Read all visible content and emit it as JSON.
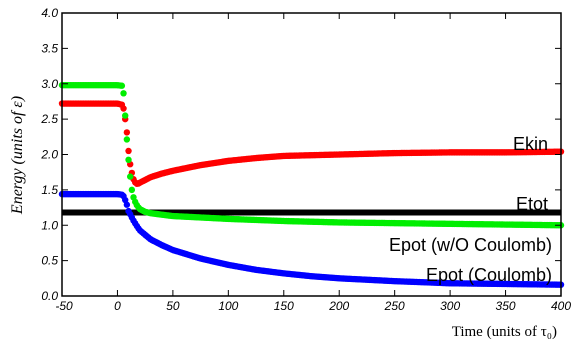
{
  "chart_data": {
    "type": "scatter",
    "xlabel": "Time (units of τ₀)",
    "ylabel": "Energy (units of ε)",
    "xlim": [
      -50,
      400
    ],
    "ylim": [
      0.0,
      4.0
    ],
    "xticks": [
      "-50",
      "0",
      "50",
      "100",
      "150",
      "200",
      "250",
      "300",
      "350",
      "400"
    ],
    "yticks": [
      "0.0",
      "0.5",
      "1.0",
      "1.5",
      "2.0",
      "2.5",
      "3.0",
      "3.5",
      "4.0"
    ],
    "grid": false,
    "series": [
      {
        "name": "Ekin",
        "color": "#ff0000",
        "x": [
          -50,
          0,
          5,
          8,
          10,
          12,
          15,
          18,
          20,
          25,
          30,
          40,
          50,
          75,
          100,
          125,
          150,
          175,
          200,
          250,
          300,
          350,
          400
        ],
        "y": [
          2.72,
          2.72,
          2.7,
          2.4,
          2.05,
          1.8,
          1.62,
          1.58,
          1.6,
          1.64,
          1.68,
          1.73,
          1.77,
          1.85,
          1.91,
          1.95,
          1.98,
          1.99,
          2.0,
          2.02,
          2.03,
          2.03,
          2.04
        ]
      },
      {
        "name": "Etot",
        "color": "#000000",
        "x": [
          -50,
          400
        ],
        "y": [
          1.18,
          1.18
        ]
      },
      {
        "name": "Epot (w/O Coulomb)",
        "color": "#00ee00",
        "x": [
          -50,
          0,
          5,
          7,
          9,
          11,
          13,
          15,
          18,
          20,
          25,
          30,
          40,
          50,
          75,
          100,
          150,
          200,
          250,
          300,
          350,
          400
        ],
        "y": [
          2.98,
          2.98,
          2.97,
          2.55,
          2.1,
          1.75,
          1.5,
          1.36,
          1.27,
          1.23,
          1.19,
          1.17,
          1.15,
          1.13,
          1.11,
          1.09,
          1.06,
          1.04,
          1.03,
          1.02,
          1.01,
          1.0
        ]
      },
      {
        "name": "Epot (Coulomb)",
        "color": "#0000ff",
        "x": [
          -50,
          0,
          5,
          8,
          10,
          15,
          20,
          30,
          40,
          50,
          75,
          100,
          125,
          150,
          175,
          200,
          250,
          300,
          350,
          400
        ],
        "y": [
          1.44,
          1.44,
          1.43,
          1.32,
          1.2,
          1.05,
          0.93,
          0.8,
          0.72,
          0.65,
          0.53,
          0.44,
          0.37,
          0.32,
          0.28,
          0.25,
          0.21,
          0.18,
          0.17,
          0.16
        ]
      }
    ],
    "annotations": [
      "Ekin",
      "Etot",
      "Epot (w/O Coulomb)",
      "Epot (Coulomb)"
    ]
  }
}
